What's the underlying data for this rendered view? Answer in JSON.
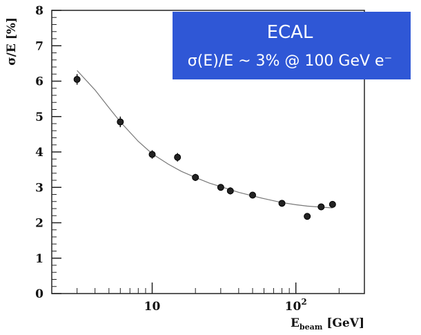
{
  "chart_data": {
    "type": "scatter",
    "xscale": "log",
    "xlim": [
      2,
      300
    ],
    "ylim": [
      0,
      8
    ],
    "grid": false,
    "x_ticks": [
      {
        "value": 10,
        "label": "10"
      },
      {
        "value": 100,
        "label": "10",
        "sup": "2"
      }
    ],
    "y_ticks": [
      0,
      1,
      2,
      3,
      4,
      5,
      6,
      7,
      8
    ],
    "xlabel": {
      "main": "E",
      "sub": "beam",
      "unit": "[GeV]"
    },
    "ylabel": "σ/E [%]",
    "annotation": {
      "title": "ECAL",
      "subtitle": "σ(E)/E ~ 3% @ 100 GeV e⁻",
      "background": "#2f57d6"
    },
    "points": [
      {
        "x": 3,
        "y": 6.05,
        "err": 0.15
      },
      {
        "x": 6,
        "y": 4.85,
        "err": 0.15
      },
      {
        "x": 10,
        "y": 3.93,
        "err": 0.12
      },
      {
        "x": 15,
        "y": 3.85,
        "err": 0.12
      },
      {
        "x": 20,
        "y": 3.28,
        "err": 0.1
      },
      {
        "x": 30,
        "y": 3.0,
        "err": 0.08
      },
      {
        "x": 35,
        "y": 2.9,
        "err": 0.1
      },
      {
        "x": 50,
        "y": 2.78,
        "err": 0.07
      },
      {
        "x": 80,
        "y": 2.55,
        "err": 0.07
      },
      {
        "x": 120,
        "y": 2.18,
        "err": 0.06
      },
      {
        "x": 150,
        "y": 2.45,
        "err": 0.06
      },
      {
        "x": 180,
        "y": 2.52,
        "err": 0.06
      }
    ],
    "fit": {
      "x": [
        3,
        4,
        5,
        6,
        8,
        10,
        13,
        16,
        20,
        25,
        30,
        40,
        50,
        60,
        80,
        100,
        120,
        150,
        180
      ],
      "y": [
        6.3,
        5.75,
        5.25,
        4.85,
        4.3,
        3.95,
        3.65,
        3.45,
        3.28,
        3.12,
        3.02,
        2.86,
        2.76,
        2.68,
        2.57,
        2.51,
        2.47,
        2.44,
        2.42
      ],
      "color": "#777777"
    }
  }
}
